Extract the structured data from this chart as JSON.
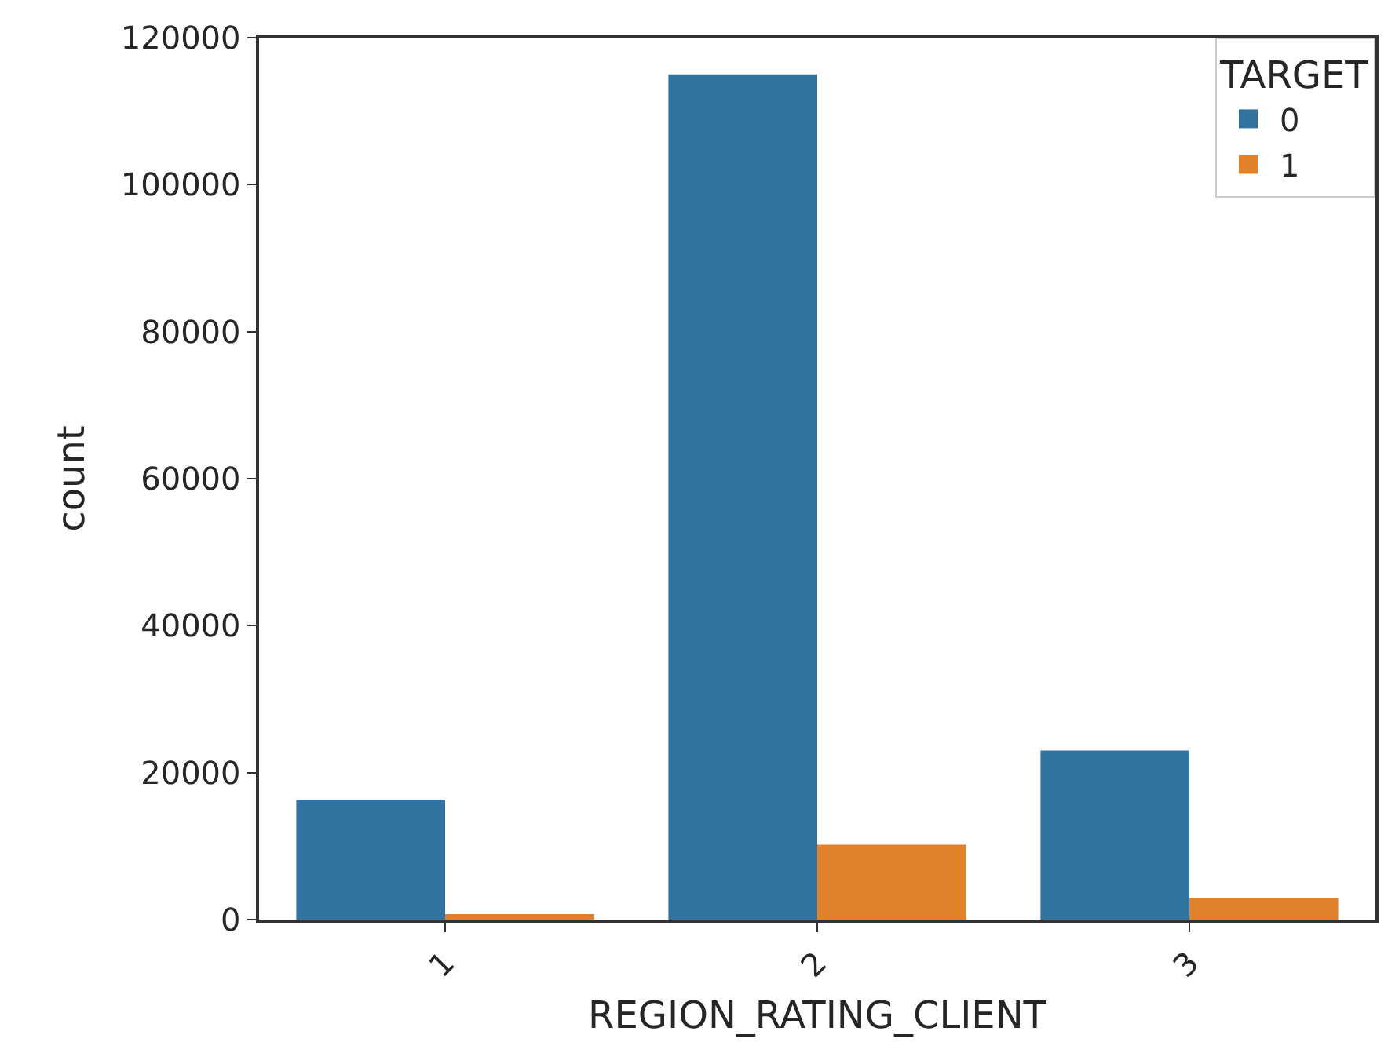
{
  "chart_data": {
    "type": "bar",
    "xlabel": "REGION_RATING_CLIENT",
    "ylabel": "count",
    "legend_title": "TARGET",
    "categories": [
      "1",
      "2",
      "3"
    ],
    "series": [
      {
        "name": "0",
        "color": "#3274a1",
        "values": [
          16300,
          115000,
          23000
        ]
      },
      {
        "name": "1",
        "color": "#e1812c",
        "values": [
          750,
          10200,
          3000
        ]
      }
    ],
    "ylim": [
      0,
      120000
    ],
    "yticks": [
      0,
      20000,
      40000,
      60000,
      80000,
      100000,
      120000
    ],
    "grid": false,
    "legend": "top right"
  }
}
